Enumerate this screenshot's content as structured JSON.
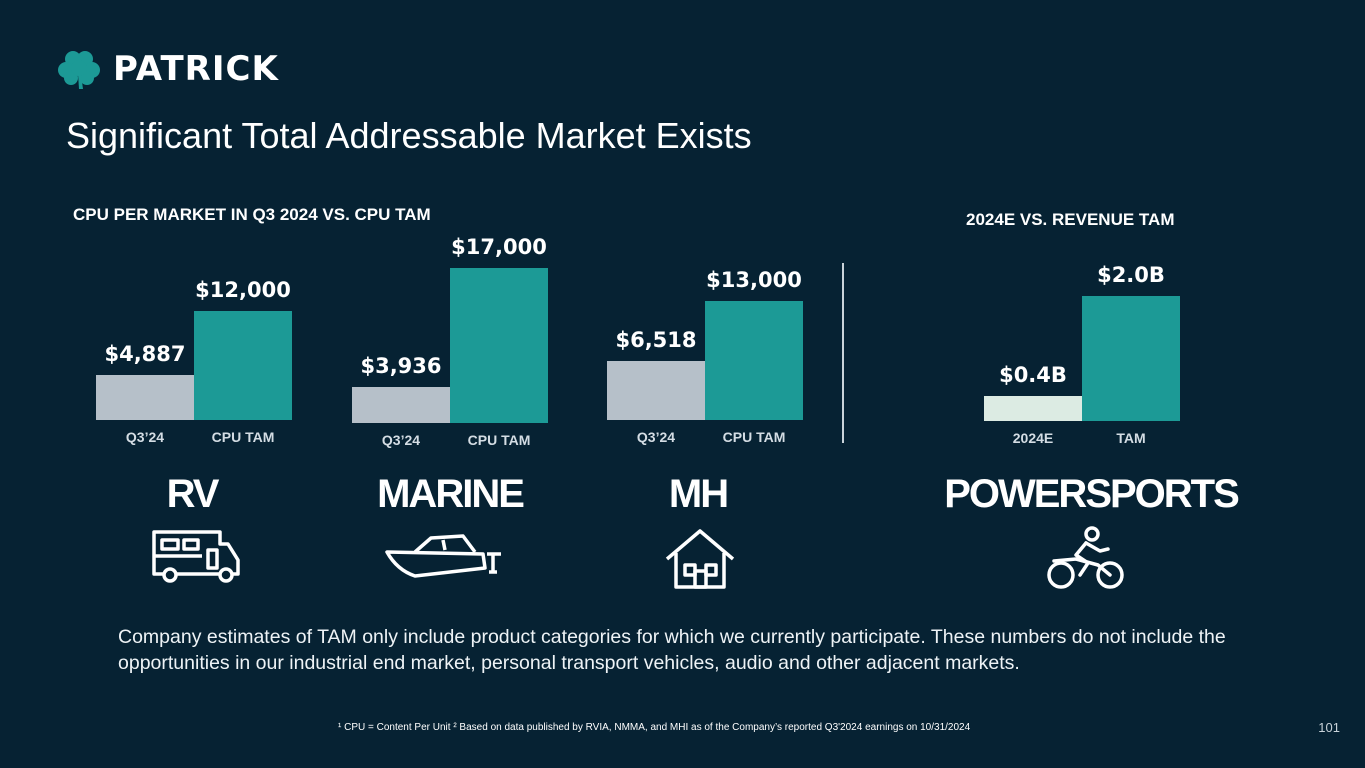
{
  "brand": {
    "name": "PATRICK"
  },
  "title": "Significant Total Addressable Market Exists",
  "sections": {
    "cpu_label": "CPU PER MARKET IN Q3 2024 VS. CPU TAM",
    "revenue_label": "2024E VS. REVENUE TAM"
  },
  "markets": [
    {
      "name": "RV",
      "icon": "rv-icon"
    },
    {
      "name": "MARINE",
      "icon": "boat-icon"
    },
    {
      "name": "MH",
      "icon": "house-icon"
    },
    {
      "name": "POWERSPORTS",
      "icon": "motorcycle-icon"
    }
  ],
  "chart_data": [
    {
      "type": "bar",
      "title": "RV",
      "categories": [
        "Q3’24",
        "CPU TAM"
      ],
      "values": [
        4887,
        12000
      ],
      "labels": [
        "$4,887",
        "$12,000"
      ],
      "unit": "$"
    },
    {
      "type": "bar",
      "title": "MARINE",
      "categories": [
        "Q3’24",
        "CPU TAM"
      ],
      "values": [
        3936,
        17000
      ],
      "labels": [
        "$3,936",
        "$17,000"
      ],
      "unit": "$"
    },
    {
      "type": "bar",
      "title": "MH",
      "categories": [
        "Q3’24",
        "CPU TAM"
      ],
      "values": [
        6518,
        13000
      ],
      "labels": [
        "$6,518",
        "$13,000"
      ],
      "unit": "$"
    },
    {
      "type": "bar",
      "title": "POWERSPORTS",
      "categories": [
        "2024E",
        "TAM"
      ],
      "values": [
        0.4,
        2.0
      ],
      "labels": [
        "$0.4B",
        "$2.0B"
      ],
      "unit": "$B"
    }
  ],
  "colors": {
    "background": "#062233",
    "actual": "#b6c0c9",
    "tam": "#1c9a96",
    "actual_powersports": "#dcebe3"
  },
  "note": "Company estimates of TAM only include product categories for which we currently participate. These numbers do not include the opportunities in our industrial end market, personal transport vehicles, audio and other adjacent markets.",
  "footnote": "¹ CPU = Content Per Unit ² Based on  data published by RVIA, NMMA, and MHI as of the Company’s reported Q3'2024 earnings on 10/31/2024",
  "page_number": "101"
}
